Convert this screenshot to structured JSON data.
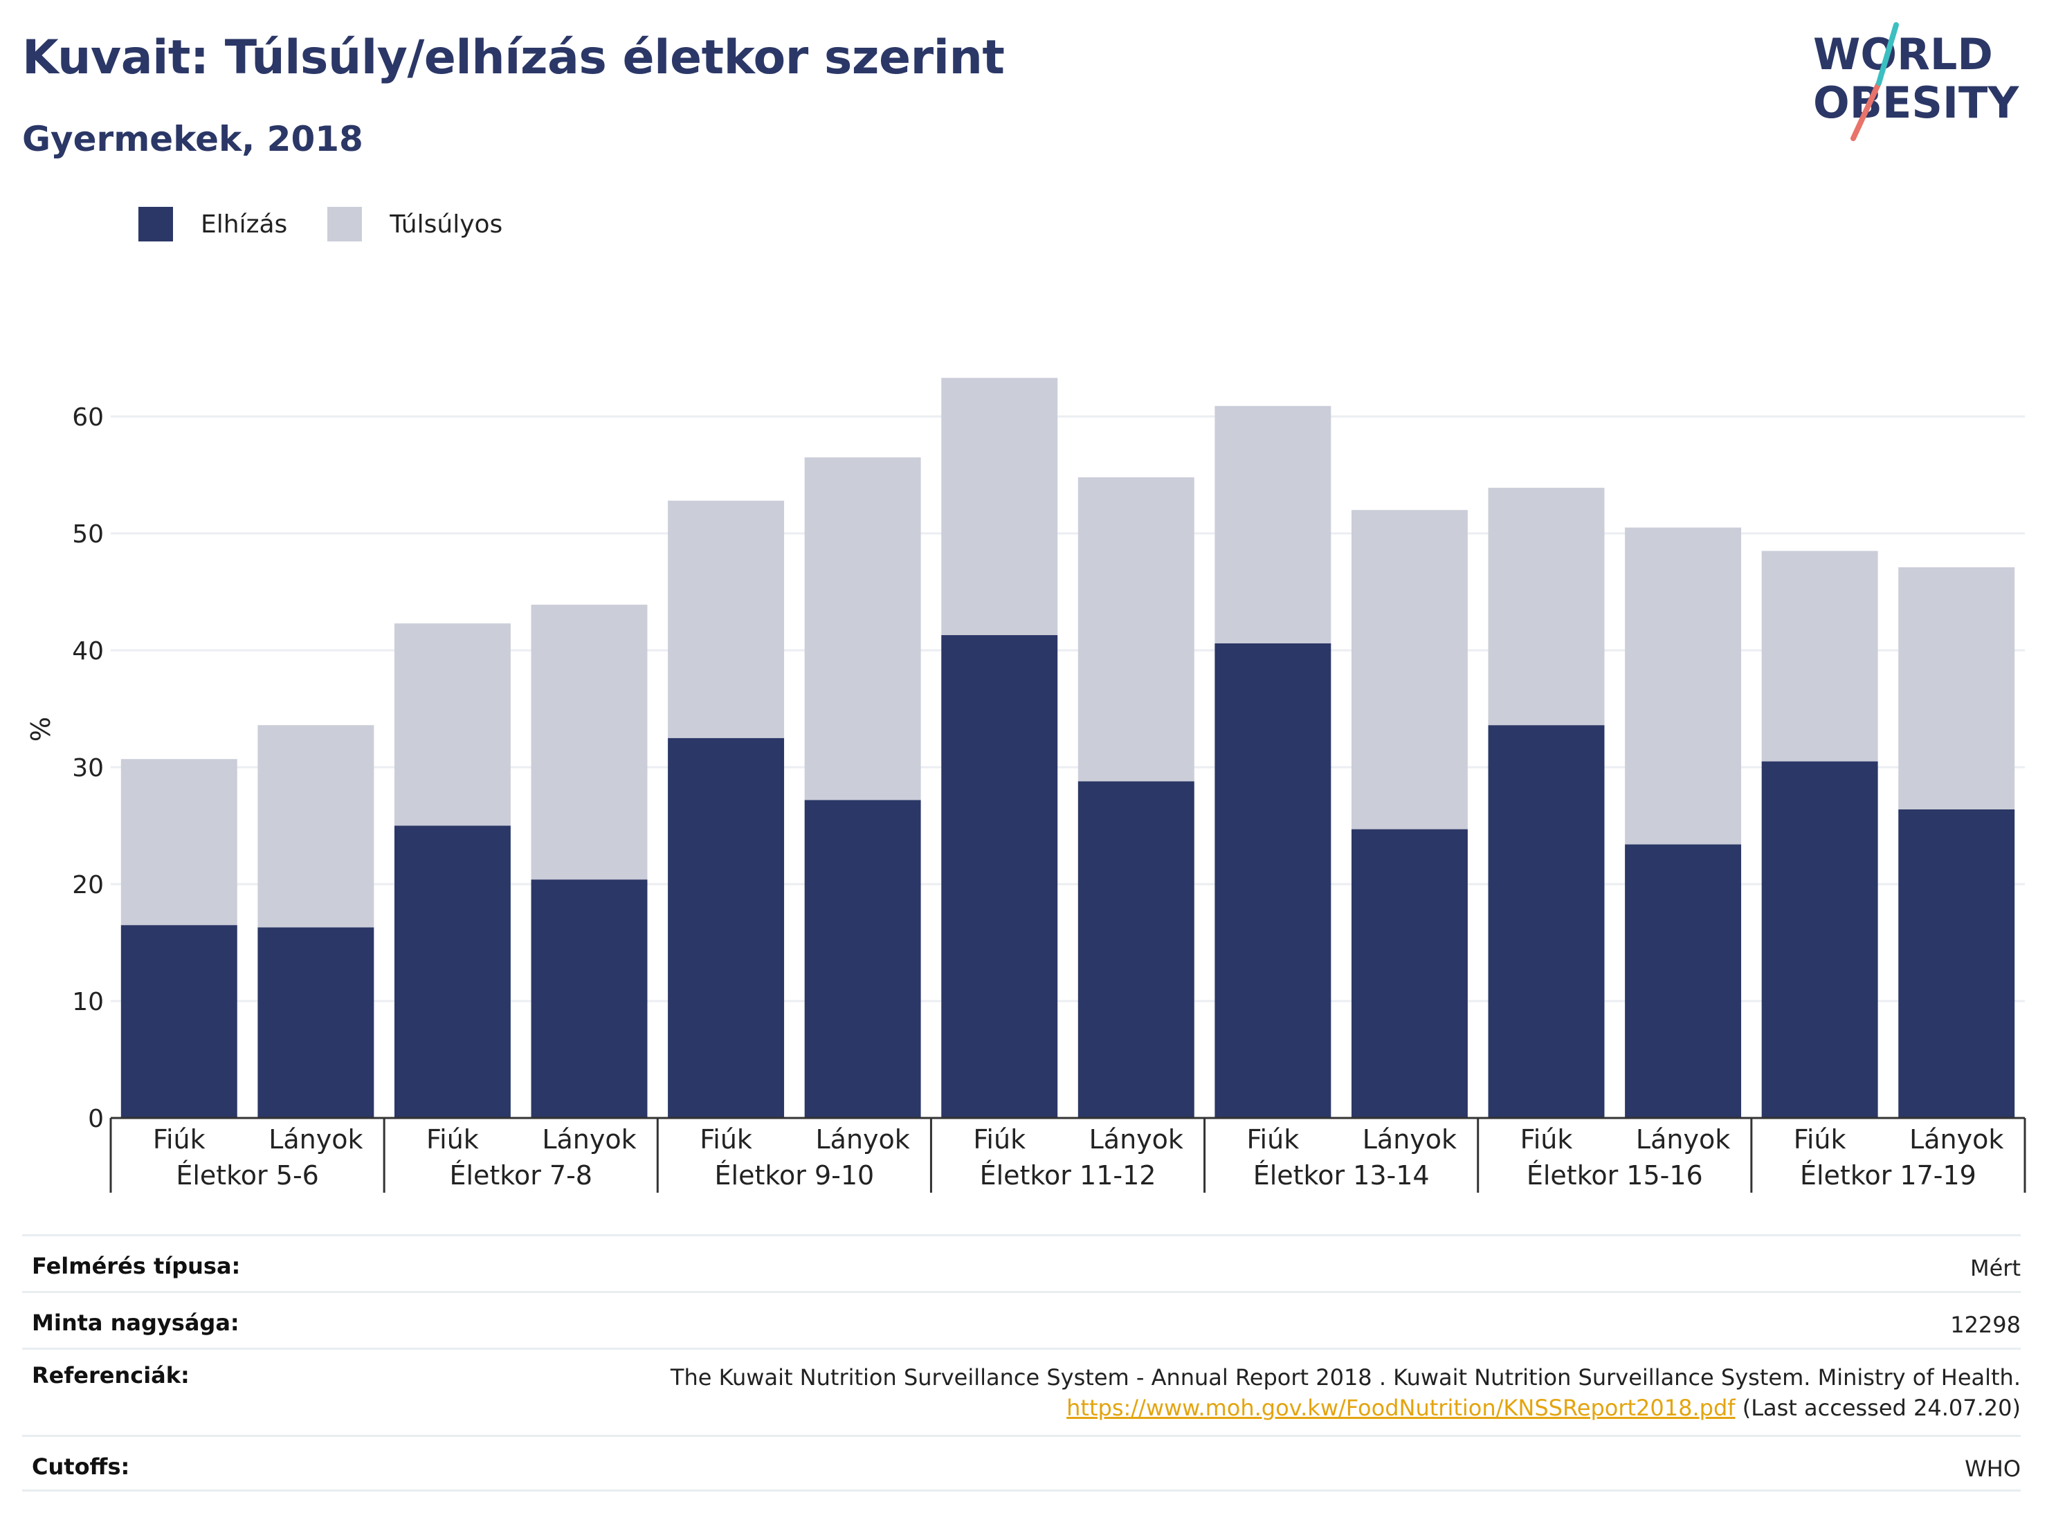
{
  "title": "Kuvait: Túlsúly/elhízás életkor szerint",
  "subtitle": "Gyermekek, 2018",
  "logo": {
    "line1": "WORLD",
    "line2": "OBESITY",
    "colors": [
      "#2b3766",
      "#e8736a",
      "#3bbfc0"
    ]
  },
  "colors": {
    "obesity": "#2b3766",
    "overweight": "#cbcdd9",
    "grid": "#ebeef2",
    "axis": "#333333"
  },
  "legend": [
    {
      "label": "Elhízás",
      "color": "#2b3766"
    },
    {
      "label": "Túlsúlyos",
      "color": "#cbcdd9"
    }
  ],
  "chart_data": {
    "type": "bar",
    "stacked": true,
    "ylabel": "%",
    "ylim": [
      0,
      70
    ],
    "yticks": [
      0,
      10,
      20,
      30,
      40,
      50,
      60
    ],
    "grid": true,
    "legend_position": "top-left",
    "groups": [
      "Életkor 5-6",
      "Életkor 7-8",
      "Életkor 9-10",
      "Életkor 11-12",
      "Életkor 13-14",
      "Életkor 15-16",
      "Életkor 17-19"
    ],
    "subcategories": [
      "Fiúk",
      "Lányok"
    ],
    "series": [
      {
        "name": "Elhízás",
        "values": [
          16.5,
          16.3,
          25.0,
          20.4,
          32.5,
          27.2,
          41.3,
          28.8,
          40.6,
          24.7,
          33.6,
          23.4,
          30.5,
          26.4
        ]
      },
      {
        "name": "Túlsúlyos",
        "values": [
          14.2,
          17.3,
          17.3,
          23.5,
          20.3,
          29.3,
          22.0,
          26.0,
          20.3,
          27.3,
          20.3,
          27.1,
          18.0,
          20.7
        ]
      }
    ]
  },
  "info": [
    {
      "key": "Felmérés típusa:",
      "value": "Mért"
    },
    {
      "key": "Minta nagysága:",
      "value": "12298"
    },
    {
      "key": "Referenciák:",
      "value": "The Kuwait Nutrition Surveillance System - Annual Report 2018 . Kuwait Nutrition Surveillance System. Ministry of Health.",
      "link": "https://www.moh.gov.kw/FoodNutrition/KNSSReport2018.pdf",
      "after_link": " (Last accessed 24.07.20)"
    },
    {
      "key": "Cutoffs:",
      "value": "WHO"
    }
  ]
}
